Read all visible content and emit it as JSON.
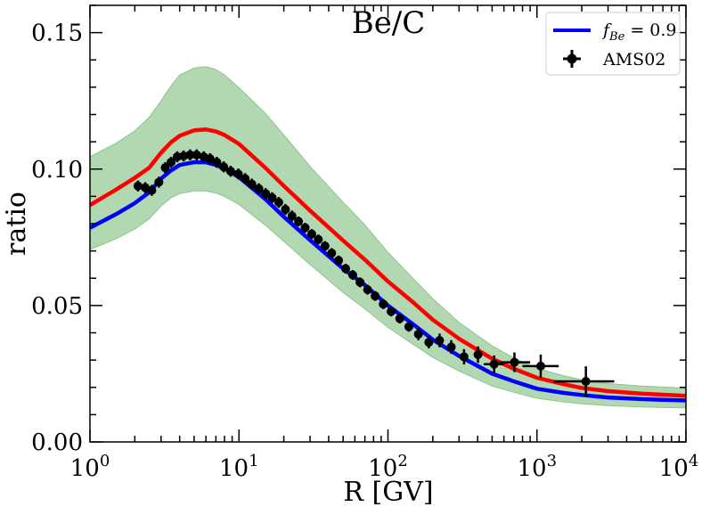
{
  "chart_data": {
    "type": "line",
    "title": "Be/C",
    "xlabel": "R [GV]",
    "ylabel": "ratio",
    "xscale": "log",
    "xlim": [
      1,
      10000
    ],
    "ylim": [
      0,
      0.16
    ],
    "xticks": [
      1,
      10,
      100,
      1000,
      10000
    ],
    "xtick_base": "10",
    "xtick_exponents": [
      "0",
      "1",
      "2",
      "3",
      "4"
    ],
    "yticks": [
      0.0,
      0.05,
      0.1,
      0.15
    ],
    "ytick_labels": [
      "0.00",
      "0.05",
      "0.10",
      "0.15"
    ],
    "legend_position": "top-right",
    "legend": {
      "line_label_prefix": "f",
      "line_label_sub": "Be",
      "line_label_suffix": " = 0.9",
      "points_label": "AMS02"
    },
    "colors": {
      "blue": "#0000ff",
      "red": "#ff0000",
      "band_fill": "#b2d8b2",
      "band_edge": "#8cc48c",
      "points": "#000000"
    },
    "series": [
      {
        "name": "f_Be = 0.9",
        "color": "#0000ff",
        "x": [
          1,
          1.5,
          2,
          2.5,
          3,
          3.5,
          4,
          5,
          6,
          7,
          8,
          10,
          15,
          20,
          30,
          50,
          70,
          100,
          150,
          200,
          300,
          500,
          700,
          1000,
          1500,
          2000,
          3000,
          5000,
          7000,
          10000
        ],
        "y": [
          0.0785,
          0.0835,
          0.0875,
          0.0915,
          0.0965,
          0.0995,
          0.1015,
          0.1025,
          0.1025,
          0.1015,
          0.1002,
          0.097,
          0.089,
          0.0825,
          0.074,
          0.0635,
          0.0575,
          0.05,
          0.0428,
          0.0375,
          0.0315,
          0.025,
          0.0222,
          0.0195,
          0.018,
          0.0172,
          0.0163,
          0.0157,
          0.0154,
          0.0152
        ]
      },
      {
        "name": "red curve",
        "color": "#ff0000",
        "x": [
          1,
          1.5,
          2,
          2.5,
          3,
          3.5,
          4,
          5,
          6,
          7,
          8,
          10,
          15,
          20,
          30,
          50,
          70,
          100,
          150,
          200,
          300,
          500,
          700,
          1000,
          1500,
          2000,
          3000,
          5000,
          7000,
          10000
        ],
        "y": [
          0.0868,
          0.0925,
          0.0968,
          0.1005,
          0.106,
          0.1098,
          0.1122,
          0.1142,
          0.1145,
          0.1138,
          0.1125,
          0.1092,
          0.1005,
          0.0938,
          0.0848,
          0.0738,
          0.0668,
          0.0588,
          0.0508,
          0.0448,
          0.0378,
          0.0305,
          0.0268,
          0.0235,
          0.0212,
          0.0198,
          0.0186,
          0.0177,
          0.0173,
          0.0169
        ]
      }
    ],
    "band": {
      "name": "uncertainty band",
      "color": "#b2d8b2",
      "x": [
        1,
        1.5,
        2,
        2.5,
        3,
        3.5,
        4,
        5,
        6,
        7,
        8,
        10,
        15,
        20,
        30,
        50,
        70,
        100,
        150,
        200,
        300,
        500,
        700,
        1000,
        1500,
        2000,
        3000,
        5000,
        7000,
        10000
      ],
      "lower": [
        0.0705,
        0.0745,
        0.078,
        0.0818,
        0.0865,
        0.0895,
        0.091,
        0.092,
        0.092,
        0.0912,
        0.09,
        0.087,
        0.0795,
        0.0735,
        0.065,
        0.0548,
        0.0488,
        0.042,
        0.0355,
        0.031,
        0.026,
        0.0205,
        0.0182,
        0.016,
        0.0147,
        0.014,
        0.0133,
        0.0128,
        0.0126,
        0.0125
      ],
      "upper": [
        0.1045,
        0.1095,
        0.114,
        0.119,
        0.125,
        0.1305,
        0.1345,
        0.137,
        0.1375,
        0.1365,
        0.1345,
        0.1298,
        0.1205,
        0.1125,
        0.101,
        0.0878,
        0.0795,
        0.0695,
        0.0595,
        0.0525,
        0.0438,
        0.0352,
        0.0308,
        0.027,
        0.0243,
        0.0228,
        0.0214,
        0.0205,
        0.0201,
        0.0197
      ]
    },
    "points": {
      "name": "AMS02",
      "x": [
        2.1,
        2.35,
        2.6,
        2.9,
        3.2,
        3.5,
        3.85,
        4.25,
        4.7,
        5.2,
        5.8,
        6.4,
        7.1,
        7.9,
        8.8,
        9.9,
        11.0,
        12.2,
        13.6,
        15.1,
        16.7,
        18.5,
        20.5,
        22.7,
        25.1,
        27.8,
        30.8,
        34.1,
        37.8,
        41.9,
        46.6,
        52.0,
        58.0,
        65.0,
        73.0,
        82.0,
        93.0,
        105,
        120,
        138,
        160,
        188,
        222,
        266,
        324,
        402,
        516,
        706,
        1060,
        2130
      ],
      "y": [
        0.0938,
        0.0932,
        0.0922,
        0.0952,
        0.1005,
        0.1025,
        0.1045,
        0.1048,
        0.1052,
        0.1052,
        0.1045,
        0.1038,
        0.1025,
        0.1008,
        0.0992,
        0.0982,
        0.0965,
        0.0945,
        0.0928,
        0.091,
        0.0895,
        0.0878,
        0.0852,
        0.0828,
        0.0808,
        0.0785,
        0.0762,
        0.0742,
        0.0718,
        0.0692,
        0.0665,
        0.0635,
        0.0612,
        0.0585,
        0.0558,
        0.0535,
        0.0505,
        0.0478,
        0.0452,
        0.0422,
        0.0395,
        0.0365,
        0.0372,
        0.0348,
        0.0312,
        0.032,
        0.0285,
        0.0292,
        0.0278,
        0.0222
      ],
      "yerr": [
        0.002,
        0.002,
        0.002,
        0.002,
        0.002,
        0.002,
        0.002,
        0.002,
        0.002,
        0.002,
        0.002,
        0.002,
        0.002,
        0.002,
        0.002,
        0.002,
        0.002,
        0.002,
        0.002,
        0.002,
        0.002,
        0.002,
        0.002,
        0.002,
        0.0018,
        0.0018,
        0.0018,
        0.0018,
        0.0018,
        0.0018,
        0.0018,
        0.0018,
        0.0018,
        0.0018,
        0.0018,
        0.0018,
        0.0018,
        0.0018,
        0.0018,
        0.0018,
        0.0022,
        0.0022,
        0.0025,
        0.0025,
        0.0028,
        0.003,
        0.0032,
        0.0036,
        0.0042,
        0.0055
      ],
      "xlo": [
        2.1,
        2.35,
        2.6,
        2.9,
        3.2,
        3.5,
        3.85,
        4.25,
        4.7,
        5.2,
        5.8,
        6.4,
        7.1,
        7.9,
        8.8,
        9.9,
        11.0,
        12.2,
        13.6,
        15.1,
        16.7,
        18.5,
        20.5,
        22.7,
        25.1,
        27.8,
        30.8,
        34.1,
        37.8,
        41.9,
        46.6,
        52.0,
        58.0,
        65.0,
        73.0,
        82.0,
        93.0,
        105,
        120,
        138,
        160,
        188,
        222,
        266,
        324,
        402,
        440,
        560,
        800,
        1300
      ],
      "xhi": [
        2.1,
        2.35,
        2.6,
        2.9,
        3.2,
        3.5,
        3.85,
        4.25,
        4.7,
        5.2,
        5.8,
        6.4,
        7.1,
        7.9,
        8.8,
        9.9,
        11.0,
        12.2,
        13.6,
        15.1,
        16.7,
        18.5,
        20.5,
        22.7,
        25.1,
        27.8,
        30.8,
        34.1,
        37.8,
        41.9,
        46.6,
        52.0,
        58.0,
        65.0,
        73.0,
        82.0,
        93.0,
        105,
        120,
        138,
        160,
        188,
        222,
        266,
        324,
        402,
        600,
        900,
        1400,
        3300
      ]
    }
  }
}
